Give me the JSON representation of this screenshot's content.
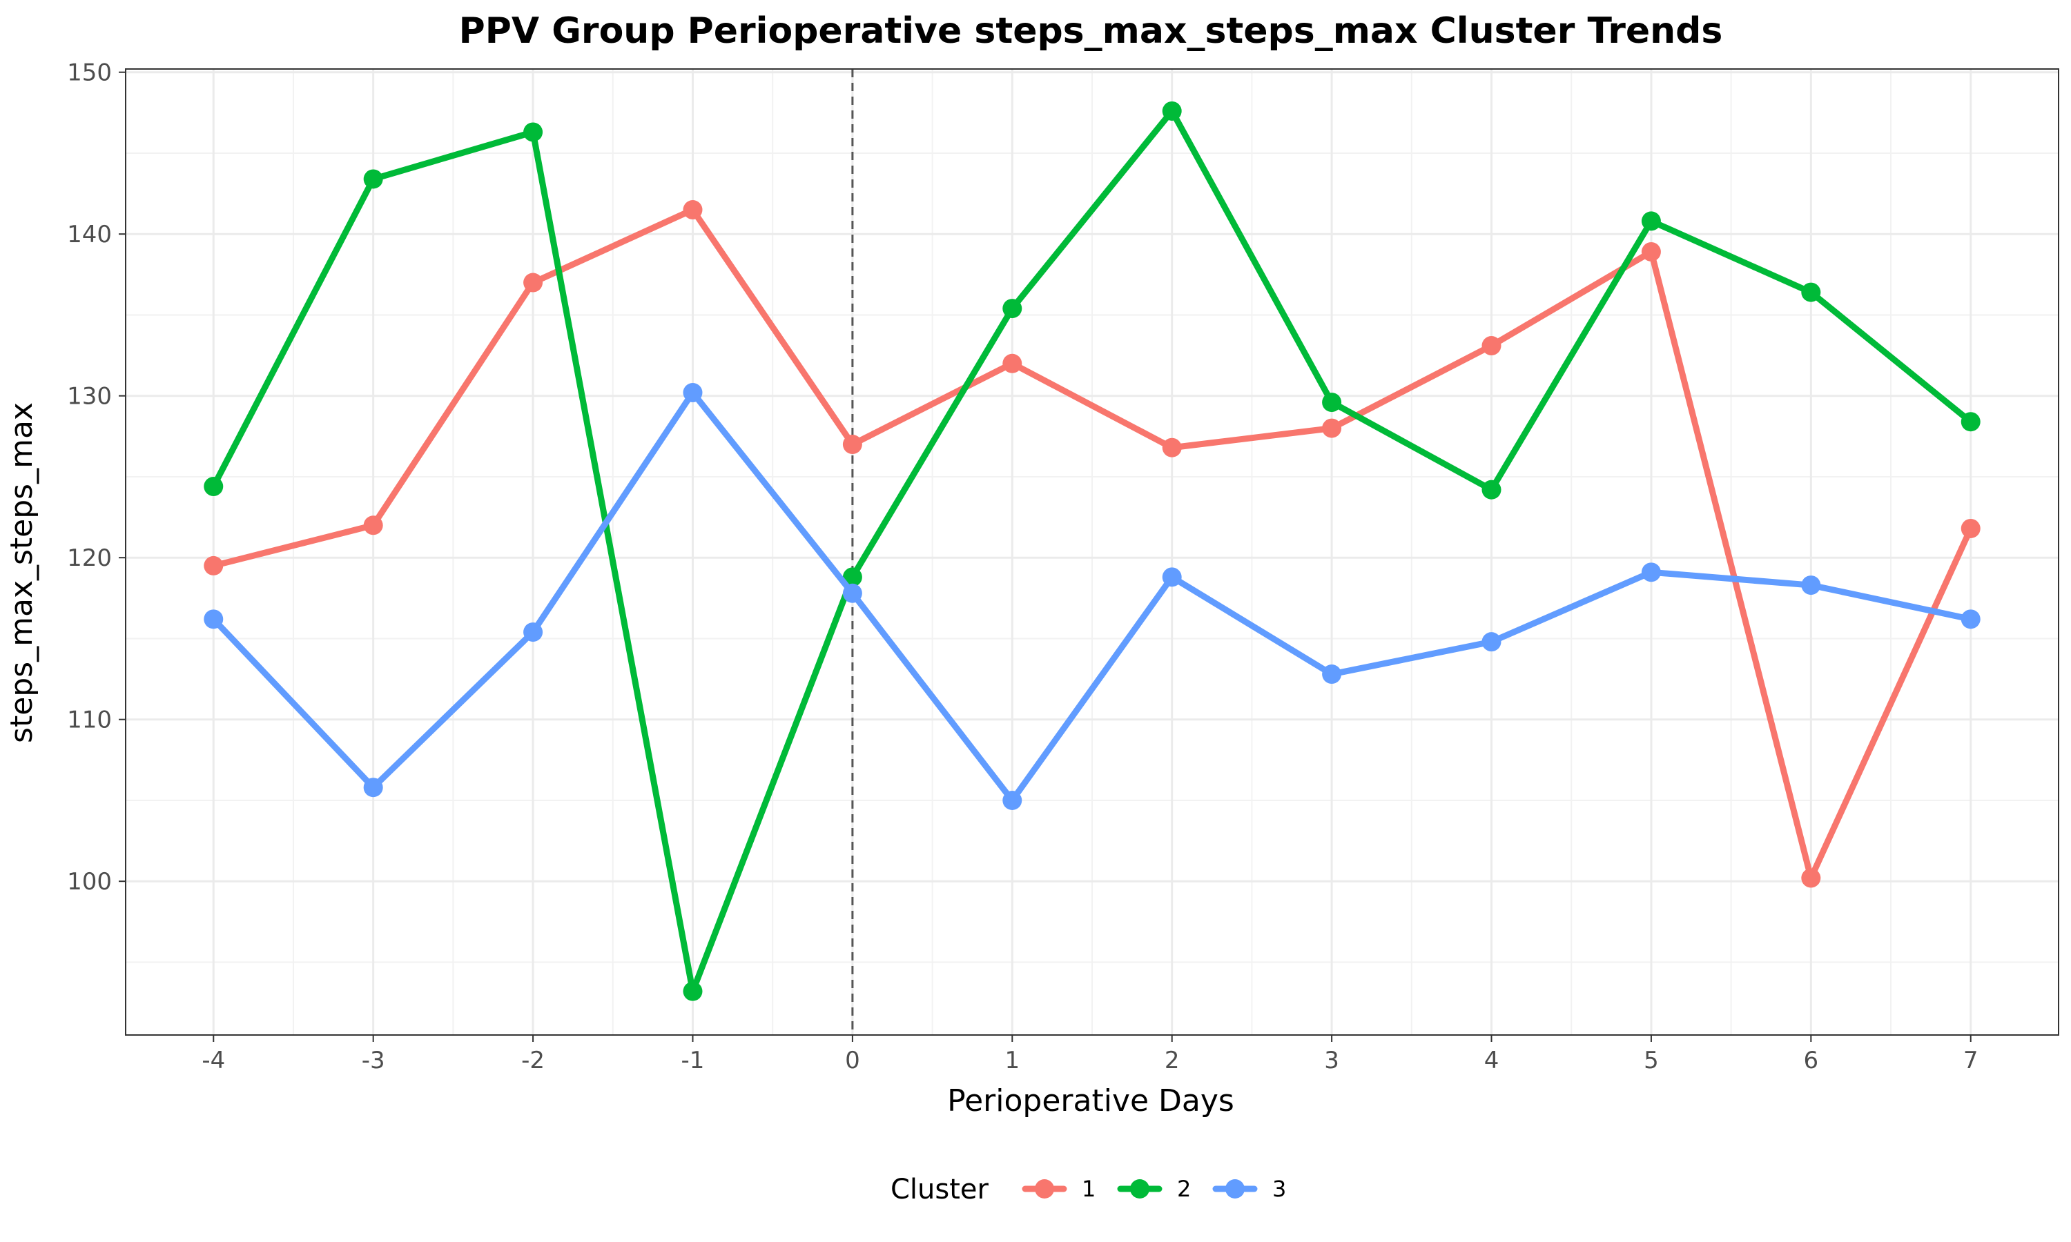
{
  "chart_data": {
    "type": "line",
    "title": "PPV Group Perioperative steps_max_steps_max Cluster Trends",
    "xlabel": "Perioperative Days",
    "ylabel": "steps_max_steps_max",
    "x": [
      -4,
      -3,
      -2,
      -1,
      0,
      1,
      2,
      3,
      4,
      5,
      6,
      7
    ],
    "x_tick_labels": [
      "-4",
      "-3",
      "-2",
      "-1",
      "0",
      "1",
      "2",
      "3",
      "4",
      "5",
      "6",
      "7"
    ],
    "xlim": [
      -4.55,
      7.55
    ],
    "y_ticks": [
      100,
      110,
      120,
      130,
      140,
      150
    ],
    "y_tick_labels": [
      "100",
      "110",
      "120",
      "130",
      "140",
      "150"
    ],
    "ylim": [
      90.5,
      150.2
    ],
    "reference_line": {
      "x": 0,
      "style": "dashed"
    },
    "grid": true,
    "legend": {
      "title": "Cluster",
      "position": "bottom"
    },
    "series": [
      {
        "name": "1",
        "color": "#F8766D",
        "values": [
          119.5,
          122.0,
          137.0,
          141.5,
          127.0,
          132.0,
          126.8,
          128.0,
          133.1,
          138.9,
          100.2,
          121.8
        ]
      },
      {
        "name": "2",
        "color": "#00BA38",
        "values": [
          124.4,
          143.4,
          146.3,
          93.2,
          118.8,
          135.4,
          147.6,
          129.6,
          124.2,
          140.8,
          136.4,
          128.4
        ]
      },
      {
        "name": "3",
        "color": "#619CFF",
        "values": [
          116.2,
          105.8,
          115.4,
          130.2,
          117.8,
          105.0,
          118.8,
          112.8,
          114.8,
          119.1,
          118.3,
          116.2
        ]
      }
    ]
  }
}
